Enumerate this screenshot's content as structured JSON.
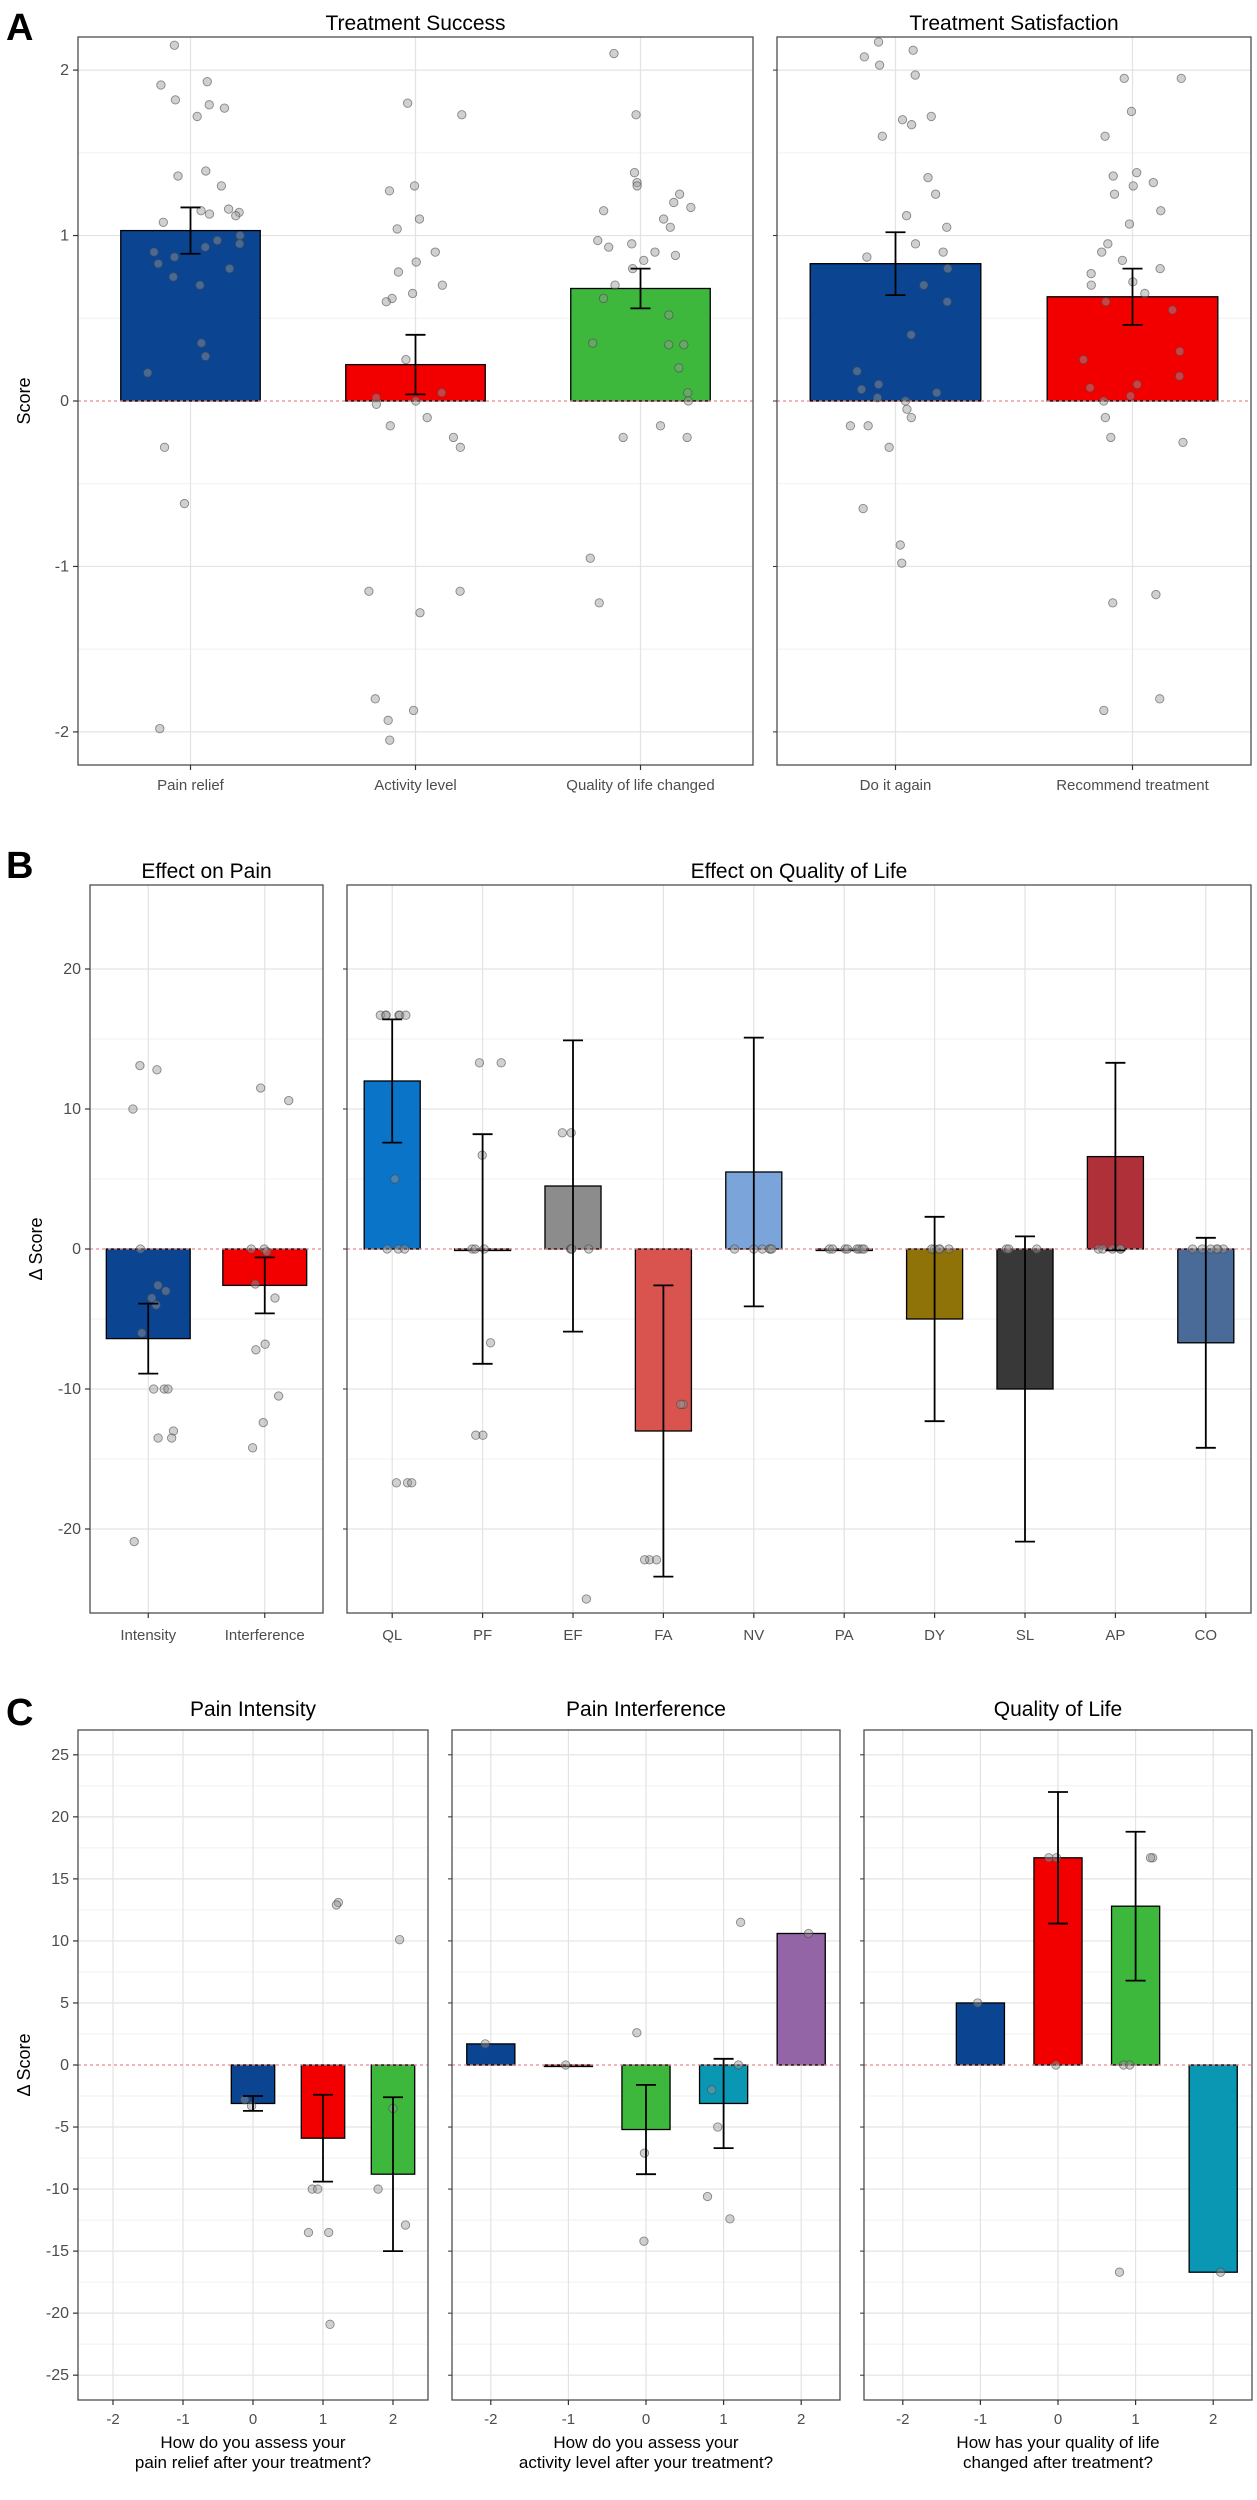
{
  "figure": {
    "panel_labels": [
      "A",
      "B",
      "C"
    ]
  },
  "chart_data": [
    {
      "id": "A1",
      "type": "bar",
      "panel": "A",
      "title": "Treatment Success",
      "xlabel": "",
      "ylabel": "Score",
      "ylim": [
        -2.2,
        2.2
      ],
      "yticks": [
        -2,
        -1,
        0,
        1,
        2
      ],
      "ytick_labels": [
        "-2",
        "-1",
        "0",
        "1",
        "2"
      ],
      "categories": [
        "Pain relief",
        "Activity level",
        "Quality of life changed"
      ],
      "values": [
        1.03,
        0.22,
        0.68
      ],
      "errors": [
        0.14,
        0.18,
        0.12
      ],
      "colors": [
        "#0b4592",
        "#f20000",
        "#3db83d"
      ],
      "points": [
        [
          2.15,
          1.93,
          1.91,
          1.82,
          1.79,
          1.77,
          1.72,
          1.39,
          1.36,
          1.3,
          1.16,
          1.15,
          1.14,
          1.13,
          1.12,
          1.08,
          1.0,
          0.97,
          0.95,
          0.93,
          0.9,
          0.87,
          0.83,
          0.8,
          0.75,
          0.7,
          0.35,
          0.27,
          0.17,
          -0.28,
          -0.62,
          -1.98
        ],
        [
          1.8,
          1.73,
          1.3,
          1.27,
          1.1,
          1.04,
          0.9,
          0.84,
          0.78,
          0.7,
          0.65,
          0.62,
          0.6,
          0.25,
          0.05,
          0.02,
          0.0,
          -0.02,
          -0.1,
          -0.15,
          -0.22,
          -0.28,
          -1.15,
          -1.15,
          -1.28,
          -1.8,
          -1.87,
          -1.93,
          -2.05
        ],
        [
          2.1,
          1.73,
          1.38,
          1.32,
          1.3,
          1.25,
          1.2,
          1.17,
          1.15,
          1.1,
          1.05,
          0.97,
          0.95,
          0.93,
          0.9,
          0.88,
          0.85,
          0.8,
          0.7,
          0.62,
          0.52,
          0.35,
          0.34,
          0.34,
          0.2,
          0.05,
          0.0,
          -0.15,
          -0.22,
          -0.22,
          -0.95,
          -1.22
        ]
      ]
    },
    {
      "id": "A2",
      "type": "bar",
      "panel": "A",
      "title": "Treatment Satisfaction",
      "xlabel": "",
      "ylabel": "",
      "ylim": [
        -2.2,
        2.2
      ],
      "yticks": [
        -2,
        -1,
        0,
        1,
        2
      ],
      "categories": [
        "Do it again",
        "Recommend treatment"
      ],
      "values": [
        0.83,
        0.63
      ],
      "errors": [
        0.19,
        0.17
      ],
      "colors": [
        "#0b4592",
        "#f20000"
      ],
      "points": [
        [
          2.17,
          2.12,
          2.08,
          2.03,
          1.97,
          1.72,
          1.7,
          1.67,
          1.6,
          1.35,
          1.25,
          1.12,
          1.05,
          0.95,
          0.9,
          0.87,
          0.8,
          0.7,
          0.6,
          0.4,
          0.18,
          0.1,
          0.07,
          0.05,
          0.02,
          0.0,
          -0.05,
          -0.1,
          -0.15,
          -0.15,
          -0.28,
          -0.65,
          -0.87,
          -0.98
        ],
        [
          1.95,
          1.95,
          1.75,
          1.6,
          1.38,
          1.36,
          1.32,
          1.3,
          1.25,
          1.15,
          1.07,
          0.95,
          0.9,
          0.85,
          0.8,
          0.77,
          0.72,
          0.7,
          0.65,
          0.6,
          0.55,
          0.3,
          0.25,
          0.15,
          0.1,
          0.08,
          0.03,
          0.0,
          -0.1,
          -0.22,
          -0.25,
          -1.17,
          -1.22,
          -1.8,
          -1.87
        ]
      ]
    },
    {
      "id": "B1",
      "type": "bar",
      "panel": "B",
      "title": "Effect on Pain",
      "xlabel": "",
      "ylabel": "Δ Score",
      "ylim": [
        -26,
        26
      ],
      "yticks": [
        -20,
        -10,
        0,
        10,
        20
      ],
      "ytick_labels": [
        "-20",
        "-10",
        "0",
        "10",
        "20"
      ],
      "categories": [
        "Intensity",
        "Interference"
      ],
      "values": [
        -6.4,
        -2.6
      ],
      "errors": [
        2.5,
        2.0
      ],
      "colors": [
        "#0b4592",
        "#f20000"
      ],
      "points": [
        [
          13.1,
          12.8,
          10.0,
          0.0,
          -2.6,
          -3.0,
          -3.5,
          -4.0,
          -6.0,
          -10.0,
          -10.0,
          -10.0,
          -13.0,
          -13.5,
          -13.5,
          -20.9
        ],
        [
          11.5,
          10.6,
          0.0,
          0.0,
          -0.2,
          -2.5,
          -3.5,
          -6.8,
          -7.2,
          -10.5,
          -12.4,
          -14.2
        ]
      ]
    },
    {
      "id": "B2",
      "type": "bar",
      "panel": "B",
      "title": "Effect on Quality of Life",
      "xlabel": "",
      "ylabel": "",
      "ylim": [
        -26,
        26
      ],
      "yticks": [
        -20,
        -10,
        0,
        10,
        20
      ],
      "categories": [
        "QL",
        "PF",
        "EF",
        "FA",
        "NV",
        "PA",
        "DY",
        "SL",
        "AP",
        "CO"
      ],
      "values": [
        12.0,
        0.0,
        4.5,
        -13.0,
        5.5,
        0.0,
        -5.0,
        -10.0,
        6.6,
        -6.7
      ],
      "errors": [
        4.4,
        8.2,
        10.4,
        10.4,
        9.6,
        0.0,
        7.3,
        10.9,
        6.7,
        7.5
      ],
      "colors": [
        "#0a74c9",
        "#9a9a9a",
        "#8c8c8c",
        "#d9534f",
        "#7ba4db",
        "#a9a9a9",
        "#8f7208",
        "#383838",
        "#b0303a",
        "#4a6a97"
      ],
      "points": [
        [
          16.7,
          16.7,
          16.7,
          16.7,
          16.7,
          16.7,
          5.0,
          0.0,
          0.0,
          0.0,
          -16.7,
          -16.7,
          -16.7
        ],
        [
          13.3,
          13.3,
          6.7,
          0.0,
          0.0,
          0.0,
          -6.7,
          -13.3,
          -13.3
        ],
        [
          8.3,
          8.3,
          0.0,
          0.0,
          0.0,
          0.0,
          -25.0
        ],
        [
          -11.1,
          -11.1,
          -22.2,
          -22.2,
          -22.2
        ],
        [
          0.0,
          0.0,
          0.0,
          0.0,
          0.0,
          0.0
        ],
        [
          0.0,
          0.0,
          0.0,
          0.0,
          0.0,
          0.0,
          0.0,
          0.0
        ],
        [
          0.0,
          0.0,
          0.0,
          0.0,
          0.0
        ],
        [
          0.0,
          0.0,
          0.0
        ],
        [
          0.0,
          0.0,
          0.0,
          0.0,
          0.0
        ],
        [
          0.0,
          0.0,
          0.0,
          0.0,
          0.0,
          0.0
        ]
      ]
    },
    {
      "id": "C1",
      "type": "bar",
      "panel": "C",
      "title": "Pain Intensity",
      "xlabel": "How do you assess your\npain relief after your treatment?",
      "ylabel": "Δ Score",
      "ylim": [
        -27,
        27
      ],
      "yticks": [
        -25,
        -20,
        -15,
        -10,
        -5,
        0,
        5,
        10,
        15,
        20,
        25
      ],
      "ytick_labels": [
        "-25",
        "-20",
        "-15",
        "-10",
        "-5",
        "0",
        "5",
        "10",
        "15",
        "20",
        "25"
      ],
      "categories": [
        "-2",
        "-1",
        "0",
        "1",
        "2"
      ],
      "values": [
        null,
        null,
        -3.1,
        -5.9,
        -8.8
      ],
      "errors": [
        null,
        null,
        0.6,
        3.5,
        6.2
      ],
      "colors": [
        "#0b4592",
        "#f20000",
        "#0b4592",
        "#f20000",
        "#3db83d"
      ],
      "points": [
        [],
        [],
        [
          -2.8,
          -3.3
        ],
        [
          13.1,
          12.9,
          -10.0,
          -10.0,
          -13.5,
          -13.5,
          -20.9
        ],
        [
          10.1,
          -3.5,
          -10.0,
          -12.9
        ]
      ]
    },
    {
      "id": "C2",
      "type": "bar",
      "panel": "C",
      "title": "Pain Interference",
      "xlabel": "How do you assess your\nactivity level after your treatment?",
      "ylabel": "",
      "ylim": [
        -27,
        27
      ],
      "yticks": [
        -25,
        -20,
        -15,
        -10,
        -5,
        0,
        5,
        10,
        15,
        20,
        25
      ],
      "categories": [
        "-2",
        "-1",
        "0",
        "1",
        "2"
      ],
      "values": [
        1.7,
        0.0,
        -5.2,
        -3.1,
        10.6
      ],
      "errors": [
        0.0,
        0.0,
        3.6,
        3.6,
        0.0
      ],
      "colors": [
        "#0b4592",
        "#f20000",
        "#3db83d",
        "#0a97b4",
        "#9364a6"
      ],
      "points": [
        [
          1.7
        ],
        [
          0.0
        ],
        [
          2.6,
          -7.1,
          -14.2
        ],
        [
          11.5,
          0.0,
          -2.0,
          -5.0,
          -10.6,
          -12.4
        ],
        [
          10.6
        ]
      ]
    },
    {
      "id": "C3",
      "type": "bar",
      "panel": "C",
      "title": "Quality of Life",
      "xlabel": "How has your quality of life\nchanged after treatment?",
      "ylabel": "",
      "ylim": [
        -27,
        27
      ],
      "yticks": [
        -25,
        -20,
        -15,
        -10,
        -5,
        0,
        5,
        10,
        15,
        20,
        25
      ],
      "categories": [
        "-2",
        "-1",
        "0",
        "1",
        "2"
      ],
      "values": [
        null,
        5.0,
        16.7,
        12.8,
        -16.7
      ],
      "errors": [
        null,
        0.0,
        5.3,
        6.0,
        0.0
      ],
      "colors": [
        "#0b4592",
        "#0b4592",
        "#f20000",
        "#3db83d",
        "#0a97b4"
      ],
      "points": [
        [],
        [
          5.0
        ],
        [
          16.7,
          16.7,
          0.0
        ],
        [
          16.7,
          16.7,
          0.0,
          0.0,
          -16.7
        ],
        [
          -16.7
        ]
      ]
    }
  ]
}
